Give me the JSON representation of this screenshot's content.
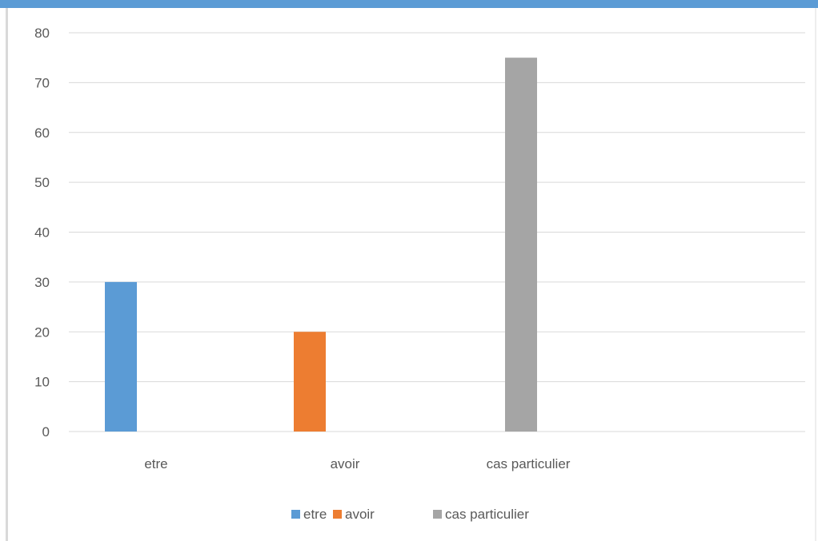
{
  "chart_data": {
    "type": "bar",
    "title": "",
    "xlabel": "",
    "ylabel": "",
    "categories": [
      "etre",
      "avoir",
      "cas particulier"
    ],
    "series": [
      {
        "name": "etre",
        "values": [
          30,
          null,
          null
        ],
        "color": "#5b9bd5"
      },
      {
        "name": "avoir",
        "values": [
          null,
          20,
          null
        ],
        "color": "#ed7d31"
      },
      {
        "name": "cas particulier",
        "values": [
          null,
          null,
          75
        ],
        "color": "#a5a5a5"
      }
    ],
    "ylim": [
      0,
      80
    ],
    "yticks": [
      0,
      10,
      20,
      30,
      40,
      50,
      60,
      70,
      80
    ],
    "grid": true,
    "legend_position": "bottom",
    "colors": {
      "accent_band": "#5b9bd5",
      "gridline": "#d9d9d9",
      "text": "#595959"
    }
  }
}
